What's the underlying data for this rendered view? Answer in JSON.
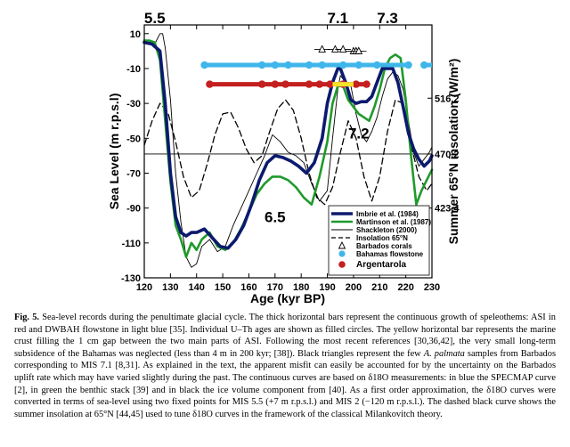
{
  "chart_data": {
    "type": "line",
    "xlabel": "Age (kyr BP)",
    "ylabel": "Sea Level (m r.p.s.l)",
    "y2label": "Summer 65°N insolation (W/m²)",
    "xlim": [
      120,
      230
    ],
    "ylim": [
      -130,
      15
    ],
    "x_ticks": [
      120,
      130,
      140,
      150,
      160,
      170,
      180,
      190,
      200,
      210,
      220,
      230
    ],
    "y_ticks": [
      10,
      -10,
      -30,
      -50,
      -70,
      -90,
      -110,
      -130
    ],
    "y2_ticks": [
      {
        "label": "516.2",
        "y": -27
      },
      {
        "label": "470.2",
        "y": -59
      },
      {
        "label": "423.4",
        "y": -90
      }
    ],
    "stage_labels": [
      {
        "text": "5.5",
        "x": 124,
        "y": 16
      },
      {
        "text": "7.1",
        "x": 194,
        "y": 16
      },
      {
        "text": "7.3",
        "x": 213,
        "y": 16
      },
      {
        "text": "7.2",
        "x": 202,
        "y": -50
      },
      {
        "text": "6.5",
        "x": 170,
        "y": -98
      }
    ],
    "legend": [
      {
        "label": "Imbrie et al. (1984)",
        "style": "thick-navy"
      },
      {
        "label": "Martinson et al. (1987)",
        "style": "green"
      },
      {
        "label": "Shackleton (2000)",
        "style": "thin-black"
      },
      {
        "label": "Insolation 65°N",
        "style": "dashed"
      },
      {
        "label": "Barbados corals",
        "style": "triangle"
      },
      {
        "label": "Bahamas flowstone",
        "style": "lightblue-dot"
      },
      {
        "label": "Argentarola",
        "style": "red-dot"
      }
    ],
    "legend_position": "bottom-right",
    "series": [
      {
        "name": "Imbrie et al. (1984)",
        "color": "#0b1a6e",
        "x": [
          120,
          123,
          126,
          128,
          130,
          132,
          134,
          136,
          138,
          140,
          143,
          146,
          149,
          152,
          155,
          158,
          161,
          164,
          167,
          170,
          173,
          176,
          179,
          182,
          185,
          188,
          190,
          192,
          194,
          195,
          197,
          199,
          201,
          203,
          205,
          207,
          209,
          211,
          213,
          215,
          217,
          219,
          221,
          223,
          225,
          227,
          229,
          230
        ],
        "y": [
          5,
          4,
          0,
          -30,
          -70,
          -95,
          -104,
          -106,
          -104,
          -104,
          -102,
          -107,
          -112,
          -113,
          -108,
          -100,
          -88,
          -74,
          -64,
          -60,
          -61,
          -63,
          -66,
          -70,
          -64,
          -50,
          -30,
          -18,
          -10,
          -10,
          -18,
          -28,
          -30,
          -29,
          -29,
          -26,
          -18,
          -10,
          -10,
          -10,
          -18,
          -32,
          -47,
          -56,
          -62,
          -66,
          -63,
          -60
        ]
      },
      {
        "name": "Martinson et al. (1987)",
        "color": "#1f9a2a",
        "x": [
          120,
          122,
          124,
          126,
          128,
          130,
          132,
          134,
          136,
          138,
          140,
          142,
          145,
          148,
          151,
          154,
          157,
          160,
          163,
          166,
          169,
          172,
          175,
          178,
          181,
          184,
          187,
          190,
          192,
          194,
          196,
          198,
          200,
          202,
          204,
          206,
          208,
          210,
          212,
          214,
          216,
          218,
          220,
          222,
          224,
          226,
          228,
          230
        ],
        "y": [
          6,
          6,
          5,
          -5,
          -40,
          -75,
          -100,
          -108,
          -118,
          -110,
          -114,
          -108,
          -104,
          -112,
          -114,
          -110,
          -102,
          -92,
          -82,
          -76,
          -72,
          -72,
          -74,
          -78,
          -84,
          -88,
          -72,
          -52,
          -30,
          -20,
          -20,
          -28,
          -32,
          -36,
          -38,
          -40,
          -32,
          -22,
          -10,
          -4,
          -2,
          -4,
          -28,
          -60,
          -88,
          -80,
          -74,
          -68
        ]
      },
      {
        "name": "Shackleton (2000)",
        "color": "#000000",
        "x": [
          120,
          122,
          124,
          126,
          127,
          128,
          130,
          132,
          134,
          136,
          138,
          140,
          142,
          145,
          148,
          151,
          154,
          157,
          160,
          163,
          166,
          169,
          172,
          175,
          178,
          181,
          184,
          187,
          190,
          192,
          194,
          195,
          197,
          199,
          201,
          203,
          205,
          207,
          209,
          211,
          213,
          215,
          217,
          219,
          221,
          223,
          225,
          227,
          229,
          230
        ],
        "y": [
          5,
          5,
          4,
          10,
          10,
          2,
          -28,
          -70,
          -98,
          -118,
          -124,
          -122,
          -112,
          -108,
          -115,
          -112,
          -100,
          -90,
          -80,
          -70,
          -60,
          -48,
          -52,
          -58,
          -60,
          -64,
          -76,
          -86,
          -80,
          -50,
          -22,
          -14,
          -18,
          -20,
          -36,
          -48,
          -52,
          -46,
          -38,
          -26,
          -16,
          -12,
          -14,
          -22,
          -40,
          -58,
          -66,
          -62,
          -58,
          -55
        ]
      },
      {
        "name": "Insolation 65°N",
        "color": "#000000",
        "style": "dashed",
        "x": [
          120,
          123,
          126,
          129,
          132,
          135,
          138,
          141,
          144,
          147,
          150,
          153,
          156,
          159,
          162,
          165,
          168,
          171,
          174,
          177,
          180,
          183,
          186,
          189,
          192,
          195,
          198,
          201,
          204,
          207,
          210,
          213,
          216,
          219,
          222,
          225,
          228,
          230
        ],
        "y": [
          -54,
          -40,
          -30,
          -35,
          -52,
          -72,
          -84,
          -80,
          -65,
          -48,
          -36,
          -35,
          -44,
          -56,
          -64,
          -60,
          -46,
          -33,
          -28,
          -34,
          -50,
          -70,
          -84,
          -88,
          -78,
          -58,
          -40,
          -50,
          -72,
          -86,
          -72,
          -46,
          -28,
          -30,
          -54,
          -72,
          -80,
          -76
        ]
      }
    ],
    "horizontal_bars": [
      {
        "name": "Bahamas flowstone",
        "color": "#3fb6ea",
        "y": -8,
        "from": 143,
        "to": 222,
        "points": [
          143,
          165,
          170,
          175,
          183,
          188,
          196,
          202,
          209,
          221
        ]
      },
      {
        "name": "Bahamas flowstone",
        "color": "#3fb6ea",
        "y": -8,
        "from": 227,
        "to": 230,
        "points": [
          227
        ]
      },
      {
        "name": "Argentarola",
        "color": "#c42020",
        "y": -19,
        "from": 145,
        "to": 205,
        "points": [
          145,
          165,
          170,
          174,
          183,
          187,
          191,
          196,
          201,
          205
        ]
      },
      {
        "name": "marine crust gap",
        "color": "#f5e22a",
        "y": -19,
        "from": 192,
        "to": 200,
        "points": []
      }
    ],
    "barbados_corals": [
      {
        "x": 188,
        "y": 1,
        "err": 3
      },
      {
        "x": 193,
        "y": 1,
        "err": 3
      },
      {
        "x": 196,
        "y": 1,
        "err": 3
      },
      {
        "x": 200,
        "y": 0,
        "err": 3
      },
      {
        "x": 201,
        "y": 0,
        "err": 3
      },
      {
        "x": 202,
        "y": 0,
        "err": 3
      }
    ],
    "reference_line_y": -59,
    "grid": false
  },
  "caption": {
    "label": "Fig. 5.",
    "text": " Sea-level records during the penultimate glacial cycle. The thick horizontal bars represent the continuous growth of speleothems: ASI in red and DWBAH flowstone in light blue [35]. Individual U–Th ages are shown as filled circles. The yellow horizontal bar represents the marine crust filling the 1 cm gap between the two main parts of ASI. Following the most recent references [30,36,42], the very small long-term subsidence of the Bahamas was neglected (less than 4 m in 200 kyr; [38]). Black triangles represent the few ",
    "species": "A. palmata",
    "text2": " samples from Barbados corresponding to MIS 7.1 [8,31]. As explained in the text, the apparent misfit can easily be accounted for by the uncertainty on the Barbados uplift rate which may have varied slightly during the past. The continuous curves are based on δ18O measurements: in blue the SPECMAP curve [2], in green the benthic stack [39] and in black the ice volume component from [40]. As a first order approximation, the δ18O curves were converted in terms of sea-level using two fixed points for MIS 5.5 (+7 m r.p.s.l.) and MIS 2 (−120 m r.p.s.l.). The dashed black curve shows the summer insolation at 65°N [44,45] used to tune δ18O curves in the framework of the classical Milankovitch theory."
  }
}
